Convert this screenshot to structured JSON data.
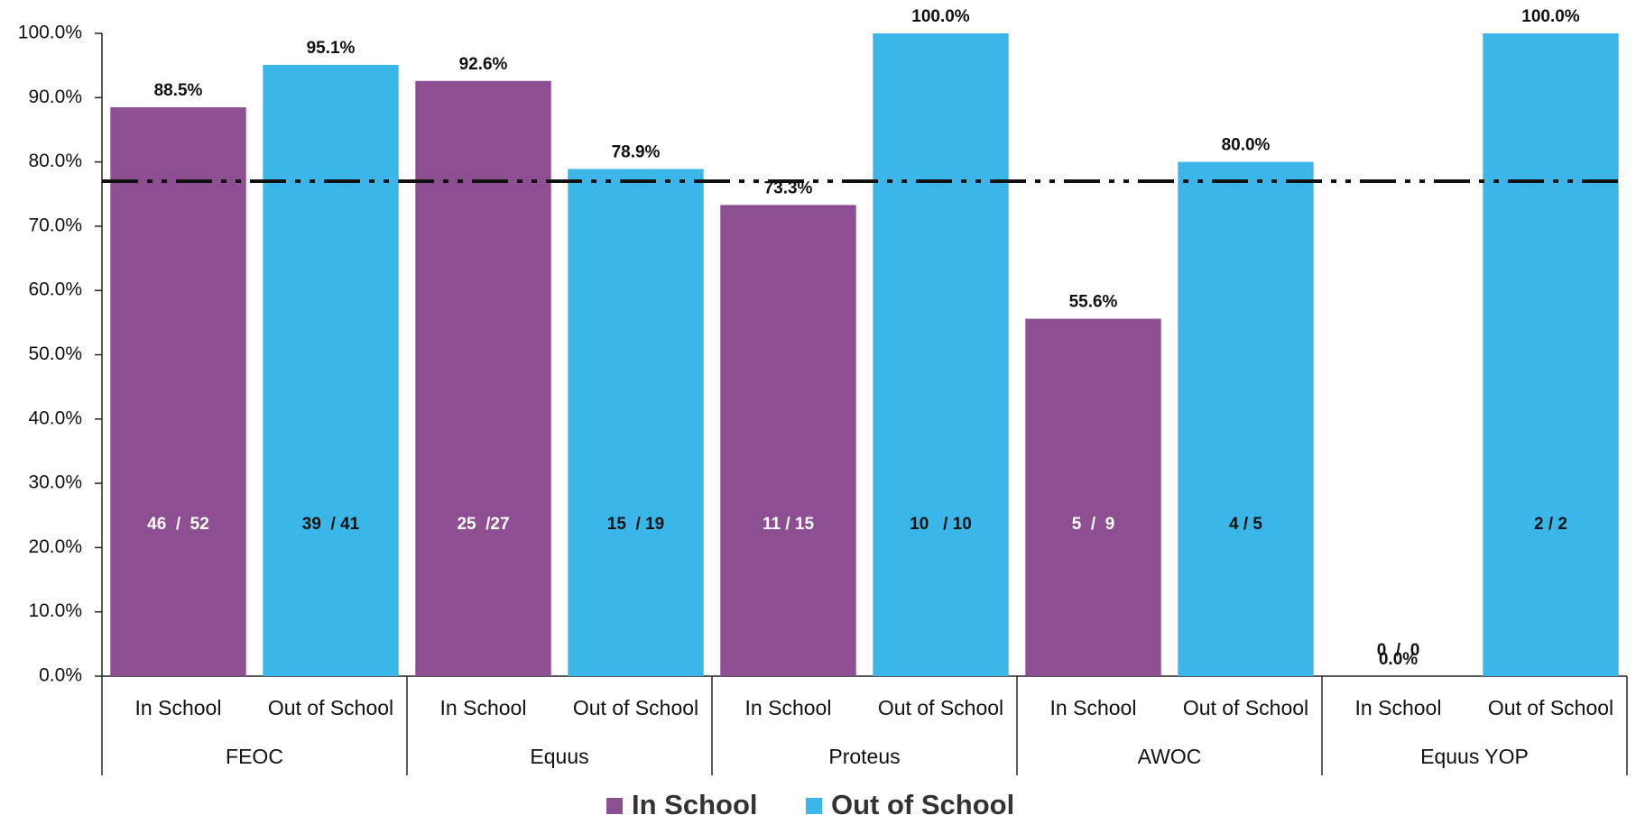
{
  "chart_data": {
    "type": "bar",
    "categories": [
      "FEOC",
      "Equus",
      "Proteus",
      "AWOC",
      "Equus YOP"
    ],
    "series": [
      {
        "name": "In School",
        "color": "#8e4f92",
        "values": [
          88.5,
          92.6,
          73.3,
          55.6,
          0.0
        ],
        "value_labels": [
          "88.5%",
          "92.6%",
          "73.3%",
          "55.6%",
          "0.0%"
        ],
        "count_labels": [
          "46  /  52",
          "25  /27",
          "11 / 15",
          "5  /  9",
          "0  /  0"
        ]
      },
      {
        "name": "Out of School",
        "color": "#3bb6e9",
        "values": [
          95.1,
          78.9,
          100.0,
          80.0,
          100.0
        ],
        "value_labels": [
          "95.1%",
          "78.9%",
          "100.0%",
          "80.0%",
          "100.0%"
        ],
        "count_labels": [
          "39  / 41",
          "15  / 19",
          "10   / 10",
          "4 / 5",
          "2 / 2"
        ]
      }
    ],
    "reference_line": 77,
    "ylim": [
      0,
      100
    ],
    "yticks": [
      {
        "value": 0,
        "label": "0.0%"
      },
      {
        "value": 10,
        "label": "10.0%"
      },
      {
        "value": 20,
        "label": "20.0%"
      },
      {
        "value": 30,
        "label": "30.0%"
      },
      {
        "value": 40,
        "label": "40.0%"
      },
      {
        "value": 50,
        "label": "50.0%"
      },
      {
        "value": 60,
        "label": "60.0%"
      },
      {
        "value": 70,
        "label": "70.0%"
      },
      {
        "value": 80,
        "label": "80.0%"
      },
      {
        "value": 90,
        "label": "90.0%"
      },
      {
        "value": 100,
        "label": "100.0%"
      }
    ],
    "grid": false,
    "legend": "bottom"
  }
}
